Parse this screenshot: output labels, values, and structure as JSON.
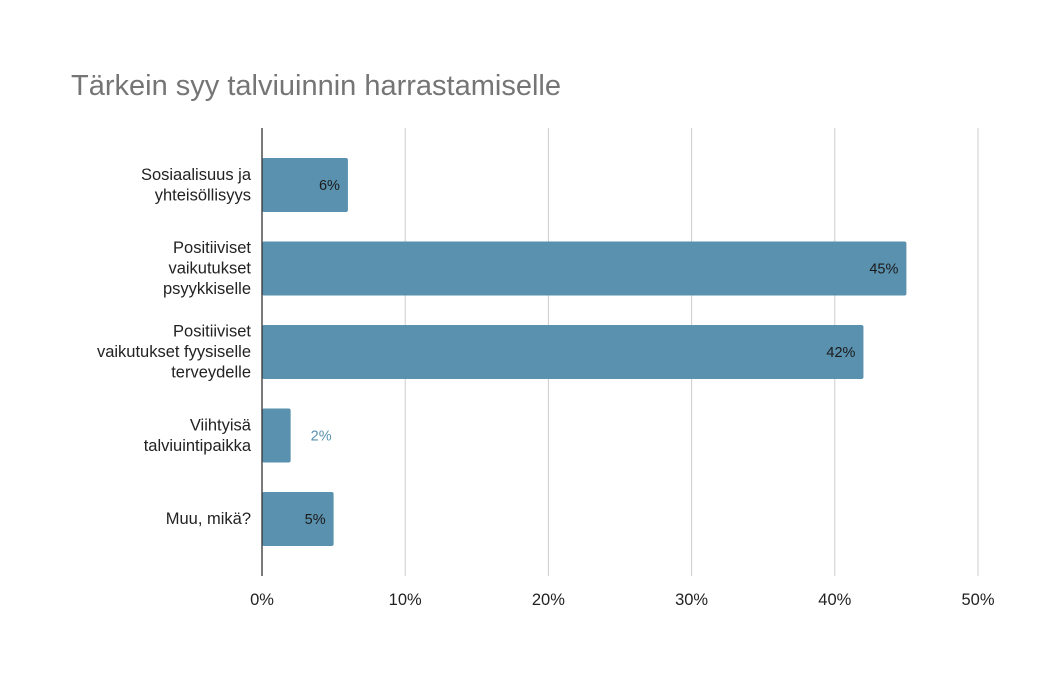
{
  "chart_data": {
    "type": "bar",
    "orientation": "horizontal",
    "title": "Tärkein syy talviuinnin harrastamiselle",
    "categories": [
      [
        "Sosiaalisuus ja",
        "yhteisöllisyys"
      ],
      [
        "Positiiviset",
        "vaikutukset",
        "psyykkiselle"
      ],
      [
        "Positiiviset",
        "vaikutukset fyysiselle",
        "terveydelle"
      ],
      [
        "Viihtyisä",
        "talviuintipaikka"
      ],
      [
        "Muu, mikä?"
      ]
    ],
    "values": [
      6,
      45,
      42,
      2,
      5
    ],
    "data_labels": [
      "6%",
      "45%",
      "42%",
      "2%",
      "5%"
    ],
    "xlim": [
      0,
      50
    ],
    "xticks": [
      0,
      10,
      20,
      30,
      40,
      50
    ],
    "xtick_labels": [
      "0%",
      "10%",
      "20%",
      "30%",
      "40%",
      "50%"
    ],
    "xlabel": "",
    "ylabel": "",
    "grid": true,
    "legend": "none",
    "colors": {
      "bar": "#5991ae",
      "title": "#757575",
      "grid": "#cccccc",
      "axis": "#333333",
      "label_inside": "#1a1a1a",
      "label_outside": "#5991ae"
    }
  }
}
